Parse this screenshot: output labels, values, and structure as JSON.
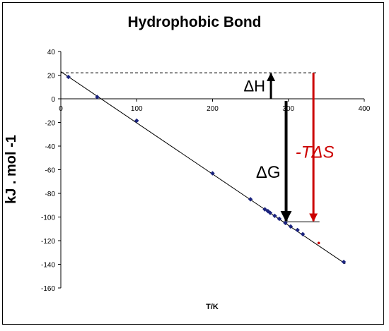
{
  "chart_data": {
    "type": "scatter",
    "title": "Hydrophobic Bond",
    "xlabel": "T/K",
    "ylabel": "kJ . mol -1",
    "xlim": [
      0,
      400
    ],
    "ylim": [
      -160,
      40
    ],
    "xticks": [
      0,
      100,
      200,
      300,
      400
    ],
    "yticks": [
      40,
      20,
      0,
      -20,
      -40,
      -60,
      -80,
      -100,
      -120,
      -140,
      -160
    ],
    "grid": false,
    "series": [
      {
        "points": [
          [
            10,
            18.5
          ],
          [
            48,
            1.5
          ],
          [
            100,
            -18.5
          ],
          [
            200,
            -63
          ],
          [
            250,
            -85
          ],
          [
            269,
            -93.5
          ],
          [
            273,
            -95
          ],
          [
            276,
            -96.5
          ],
          [
            282,
            -99
          ],
          [
            288,
            -101.5
          ],
          [
            296,
            -105
          ],
          [
            303,
            -108
          ],
          [
            312,
            -111
          ],
          [
            319,
            -114.5
          ],
          [
            373,
            -138
          ]
        ],
        "color": "#1a237e"
      }
    ],
    "trendline": {
      "from": [
        0,
        23
      ],
      "to": [
        375,
        -139.5
      ],
      "color": "#000000"
    },
    "marked_point": {
      "x": 340,
      "y": -122,
      "color": "#cc0000"
    },
    "annotations": {
      "dH": {
        "label": "ΔH",
        "x": 277,
        "from": 0,
        "to": 22,
        "color": "#000000"
      },
      "dG": {
        "label": "ΔG",
        "x": 297,
        "from": 0,
        "to": -104,
        "color": "#000000"
      },
      "TdS": {
        "label": "-TΔS",
        "x": 333,
        "from": 22,
        "to": -104,
        "color": "#cc0000"
      },
      "dashed_level": 22,
      "lower_level": -104
    }
  }
}
